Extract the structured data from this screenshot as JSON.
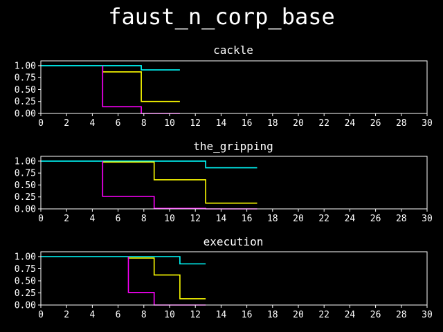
{
  "figure": {
    "title": "faust_n_corp_base",
    "background": "#000000",
    "foreground": "#ffffff"
  },
  "series_colors": {
    "cyan": "#00ffff",
    "yellow": "#ffff00",
    "magenta": "#ff00ff"
  },
  "chart_data": [
    {
      "type": "line",
      "title": "cackle",
      "xlim": [
        0,
        30
      ],
      "ylim": [
        0,
        1.1
      ],
      "xticks": [
        "0",
        "2",
        "4",
        "6",
        "8",
        "10",
        "12",
        "14",
        "16",
        "18",
        "20",
        "22",
        "24",
        "26",
        "28",
        "30"
      ],
      "yticks": [
        "0.00",
        "0.25",
        "0.50",
        "0.75",
        "1.00"
      ],
      "grid": false,
      "series": [
        {
          "color": "#00ffff",
          "steps": [
            [
              0,
              1.0
            ],
            [
              7.8,
              0.91
            ],
            [
              10.8,
              0.91
            ]
          ]
        },
        {
          "color": "#ffff00",
          "steps": [
            [
              4.8,
              1.0
            ],
            [
              4.8,
              0.87
            ],
            [
              7.8,
              0.25
            ],
            [
              10.8,
              0.25
            ]
          ]
        },
        {
          "color": "#ff00ff",
          "steps": [
            [
              4.8,
              1.0
            ],
            [
              4.8,
              0.14
            ],
            [
              7.8,
              0.0
            ],
            [
              10.8,
              0.0
            ]
          ]
        }
      ]
    },
    {
      "type": "line",
      "title": "the_gripping",
      "xlim": [
        0,
        30
      ],
      "ylim": [
        0,
        1.1
      ],
      "xticks": [
        "0",
        "2",
        "4",
        "6",
        "8",
        "10",
        "12",
        "14",
        "16",
        "18",
        "20",
        "22",
        "24",
        "26",
        "28",
        "30"
      ],
      "yticks": [
        "0.00",
        "0.25",
        "0.50",
        "0.75",
        "1.00"
      ],
      "grid": false,
      "series": [
        {
          "color": "#00ffff",
          "steps": [
            [
              0,
              1.0
            ],
            [
              12.8,
              0.86
            ],
            [
              16.8,
              0.86
            ]
          ]
        },
        {
          "color": "#ffff00",
          "steps": [
            [
              4.8,
              1.0
            ],
            [
              4.8,
              0.98
            ],
            [
              8.8,
              0.61
            ],
            [
              12.8,
              0.12
            ],
            [
              16.8,
              0.12
            ]
          ]
        },
        {
          "color": "#ff00ff",
          "steps": [
            [
              4.8,
              1.0
            ],
            [
              4.8,
              0.26
            ],
            [
              8.8,
              0.01
            ],
            [
              12.8,
              0.0
            ],
            [
              16.8,
              0.0
            ]
          ]
        }
      ]
    },
    {
      "type": "line",
      "title": "execution",
      "xlim": [
        0,
        30
      ],
      "ylim": [
        0,
        1.1
      ],
      "xticks": [
        "0",
        "2",
        "4",
        "6",
        "8",
        "10",
        "12",
        "14",
        "16",
        "18",
        "20",
        "22",
        "24",
        "26",
        "28",
        "30"
      ],
      "yticks": [
        "0.00",
        "0.25",
        "0.50",
        "0.75",
        "1.00"
      ],
      "grid": false,
      "series": [
        {
          "color": "#00ffff",
          "steps": [
            [
              0,
              1.0
            ],
            [
              10.8,
              0.85
            ],
            [
              12.8,
              0.85
            ]
          ]
        },
        {
          "color": "#ffff00",
          "steps": [
            [
              6.8,
              1.0
            ],
            [
              6.8,
              0.97
            ],
            [
              8.8,
              0.62
            ],
            [
              10.8,
              0.13
            ],
            [
              12.8,
              0.13
            ]
          ]
        },
        {
          "color": "#ff00ff",
          "steps": [
            [
              6.8,
              1.0
            ],
            [
              6.8,
              0.26
            ],
            [
              8.8,
              0.0
            ],
            [
              12.8,
              0.0
            ]
          ]
        }
      ]
    }
  ]
}
